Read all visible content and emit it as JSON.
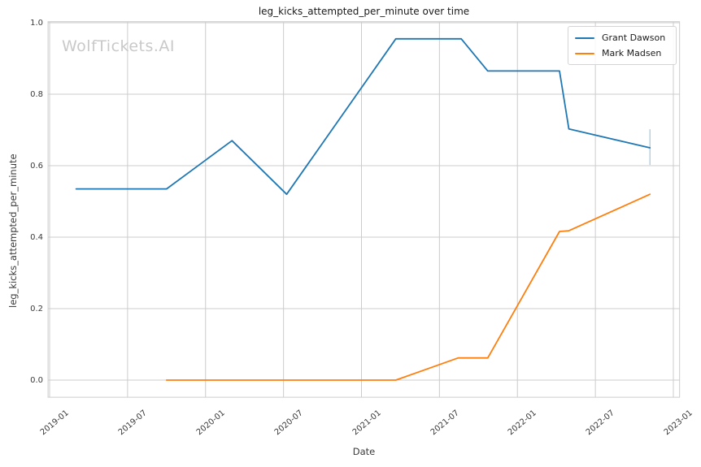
{
  "watermark": "WolfTickets.AI",
  "colors": {
    "grid": "#cccccc",
    "spine": "#cccccc",
    "series_blue": "#1f77b4",
    "series_orange": "#ff7f0e",
    "errorbar": "#b5d1e6",
    "text": "#3a3a3a",
    "title_text": "#1a1a1a",
    "watermark_text": "#c9c9c9"
  },
  "chart_data": {
    "type": "line",
    "title": "leg_kicks_attempted_per_minute over time",
    "xlabel": "Date",
    "ylabel": "leg_kicks_attempted_per_minute",
    "grid": true,
    "legend_position": "upper right",
    "xlim": [
      2018.99,
      2023.04
    ],
    "ylim": [
      -0.048,
      1.003
    ],
    "x_ticks": [
      2019.0,
      2019.5,
      2020.0,
      2020.5,
      2021.0,
      2021.5,
      2022.0,
      2022.5,
      2023.0
    ],
    "x_tick_labels": [
      "2019-01",
      "2019-07",
      "2020-01",
      "2020-07",
      "2021-01",
      "2021-07",
      "2022-01",
      "2022-07",
      "2023-01"
    ],
    "y_ticks": [
      0.0,
      0.2,
      0.4,
      0.6,
      0.8,
      1.0
    ],
    "y_tick_labels": [
      "0.0",
      "0.2",
      "0.4",
      "0.6",
      "0.8",
      "1.0"
    ],
    "series": [
      {
        "name": "Grant Dawson",
        "color": "#1f77b4",
        "points": [
          [
            2019.17,
            0.535
          ],
          [
            2019.75,
            0.535
          ],
          [
            2020.17,
            0.67
          ],
          [
            2020.52,
            0.52
          ],
          [
            2021.22,
            0.955
          ],
          [
            2021.64,
            0.955
          ],
          [
            2021.81,
            0.865
          ],
          [
            2022.27,
            0.865
          ],
          [
            2022.33,
            0.703
          ],
          [
            2022.85,
            0.65
          ]
        ]
      },
      {
        "name": "Mark Madsen",
        "color": "#ff7f0e",
        "points": [
          [
            2019.75,
            0.0
          ],
          [
            2021.22,
            0.0
          ],
          [
            2021.62,
            0.062
          ],
          [
            2021.81,
            0.062
          ],
          [
            2022.27,
            0.416
          ],
          [
            2022.33,
            0.418
          ],
          [
            2022.85,
            0.52
          ]
        ]
      }
    ],
    "errorbar": {
      "series": "Grant Dawson",
      "x": 2022.85,
      "y_low": 0.602,
      "y_high": 0.702,
      "color": "#b5d1e6"
    }
  }
}
